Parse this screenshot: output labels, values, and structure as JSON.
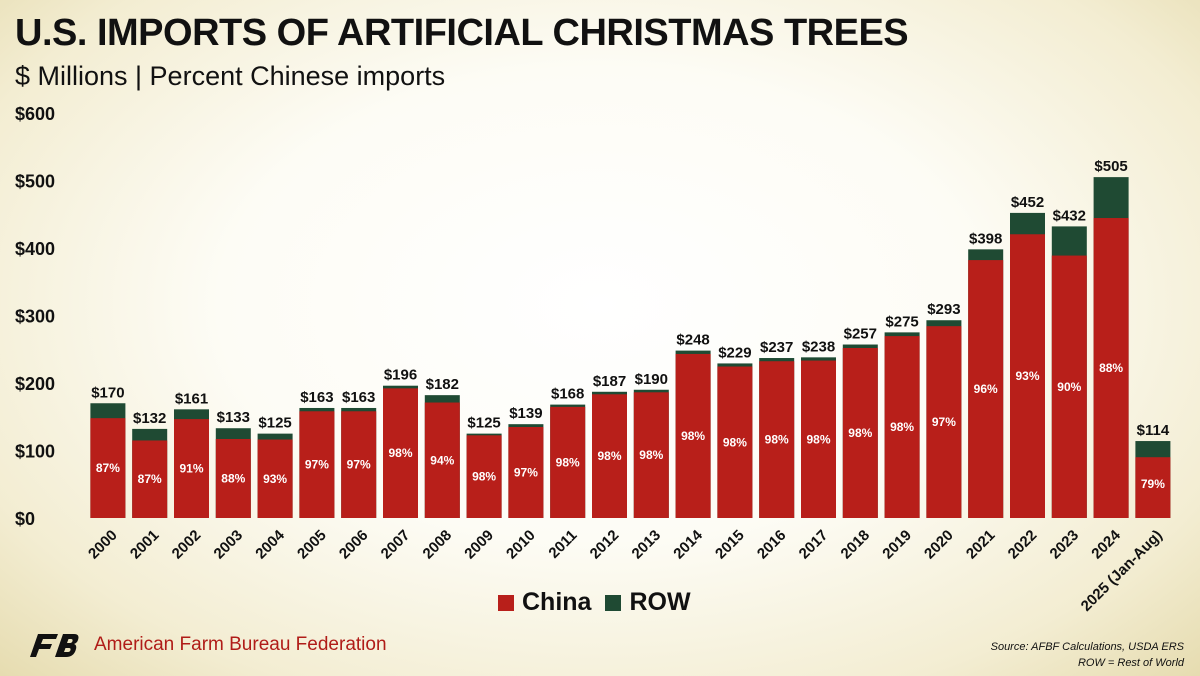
{
  "header": {
    "title": "U.S. IMPORTS OF ARTIFICIAL CHRISTMAS TREES",
    "subtitle": "$ Millions | Percent Chinese imports"
  },
  "legend": {
    "china_label": "China",
    "row_label": "ROW"
  },
  "footer": {
    "org_name": "American Farm Bureau Federation",
    "source_line1": "Source: AFBF Calculations, USDA ERS",
    "source_line2": "ROW = Rest of World"
  },
  "colors": {
    "china": "#b81f1a",
    "row": "#1f4a33",
    "text": "#111111",
    "brand": "#b01c18"
  },
  "chart_data": {
    "type": "bar",
    "stacked": true,
    "title": "U.S. IMPORTS OF ARTIFICIAL CHRISTMAS TREES",
    "subtitle": "$ Millions | Percent Chinese imports",
    "xlabel": "",
    "ylabel": "$ Millions",
    "ylim": [
      0,
      600
    ],
    "yticks": [
      "$0",
      "$100",
      "$200",
      "$300",
      "$400",
      "$500",
      "$600"
    ],
    "ytick_values": [
      0,
      100,
      200,
      300,
      400,
      500,
      600
    ],
    "categories": [
      "2000",
      "2001",
      "2002",
      "2003",
      "2004",
      "2005",
      "2006",
      "2007",
      "2008",
      "2009",
      "2010",
      "2011",
      "2012",
      "2013",
      "2014",
      "2015",
      "2016",
      "2017",
      "2018",
      "2019",
      "2020",
      "2021",
      "2022",
      "2023",
      "2024",
      "2025 (Jan-Aug)"
    ],
    "totals": [
      170,
      132,
      161,
      133,
      125,
      163,
      163,
      196,
      182,
      125,
      139,
      168,
      187,
      190,
      248,
      229,
      237,
      238,
      257,
      275,
      293,
      398,
      452,
      432,
      505,
      114
    ],
    "total_labels": [
      "$170",
      "$132",
      "$161",
      "$133",
      "$125",
      "$163",
      "$163",
      "$196",
      "$182",
      "$125",
      "$139",
      "$168",
      "$187",
      "$190",
      "$248",
      "$229",
      "$237",
      "$238",
      "$257",
      "$275",
      "$293",
      "$398",
      "$452",
      "$432",
      "$505",
      "$114"
    ],
    "china_percent": [
      87,
      87,
      91,
      88,
      93,
      97,
      97,
      98,
      94,
      98,
      97,
      98,
      98,
      98,
      98,
      98,
      98,
      98,
      98,
      98,
      97,
      96,
      93,
      90,
      88,
      79
    ],
    "percent_labels": [
      "87%",
      "87%",
      "91%",
      "88%",
      "93%",
      "97%",
      "97%",
      "98%",
      "94%",
      "98%",
      "97%",
      "98%",
      "98%",
      "98%",
      "98%",
      "98%",
      "98%",
      "98%",
      "98%",
      "98%",
      "97%",
      "96%",
      "93%",
      "90%",
      "88%",
      "79%"
    ],
    "series": [
      {
        "name": "China",
        "color": "#b81f1a"
      },
      {
        "name": "ROW",
        "color": "#1f4a33"
      }
    ],
    "legend_position": "bottom-center",
    "grid": false
  }
}
